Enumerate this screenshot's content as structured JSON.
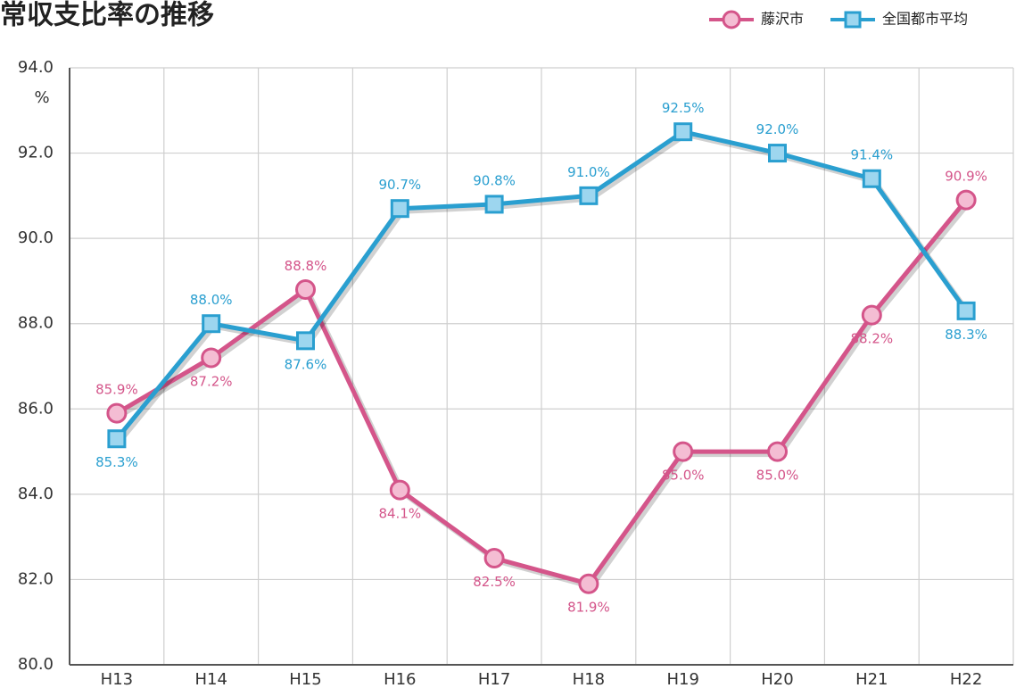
{
  "chart_data": {
    "type": "line",
    "title": "常収支比率の推移",
    "categories": [
      "H13",
      "H14",
      "H15",
      "H16",
      "H17",
      "H18",
      "H19",
      "H20",
      "H21",
      "H22"
    ],
    "series": [
      {
        "name": "藤沢市",
        "color": "#d4558a",
        "marker": "circle",
        "values": [
          85.9,
          87.2,
          88.8,
          84.1,
          82.5,
          81.9,
          85.0,
          85.0,
          88.2,
          90.9
        ],
        "value_labels": [
          "85.9%",
          "87.2%",
          "88.8%",
          "84.1%",
          "82.5%",
          "81.9%",
          "85.0%",
          "85.0%",
          "88.2%",
          "90.9%"
        ]
      },
      {
        "name": "全国都市平均",
        "color": "#2a9fd0",
        "marker": "square",
        "values": [
          85.3,
          88.0,
          87.6,
          90.7,
          90.8,
          91.0,
          92.5,
          92.0,
          91.4,
          88.3
        ],
        "value_labels": [
          "85.3%",
          "88.0%",
          "87.6%",
          "90.7%",
          "90.8%",
          "91.0%",
          "92.5%",
          "92.0%",
          "91.4%",
          "88.3%"
        ]
      }
    ],
    "y_unit": "%",
    "ylim": [
      80,
      94
    ],
    "yticks": [
      {
        "value": 80,
        "label": "80.0"
      },
      {
        "value": 82,
        "label": "82.0"
      },
      {
        "value": 84,
        "label": "84.0"
      },
      {
        "value": 86,
        "label": "86.0"
      },
      {
        "value": 88,
        "label": "88.0"
      },
      {
        "value": 90,
        "label": "90.0"
      },
      {
        "value": 92,
        "label": "92.0"
      },
      {
        "value": 94,
        "label": "94.0"
      }
    ],
    "grid": true,
    "legend": "top-right"
  }
}
